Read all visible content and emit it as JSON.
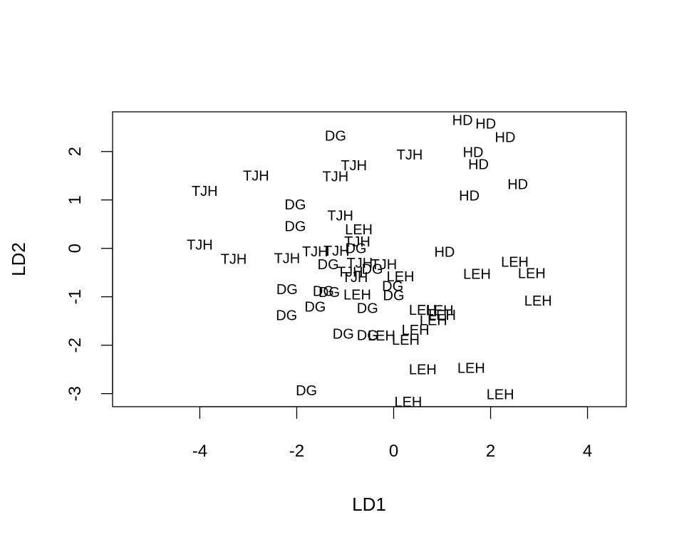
{
  "chart_data": {
    "type": "scatter",
    "title": "",
    "xlabel": "LD1",
    "ylabel": "LD2",
    "xlim": [
      -5.8,
      4.8
    ],
    "ylim": [
      -3.27,
      2.82
    ],
    "xticks": [
      -4,
      -2,
      0,
      2,
      4
    ],
    "yticks": [
      -3,
      -2,
      -1,
      0,
      1,
      2
    ],
    "points": [
      {
        "x": 1.42,
        "y": 2.65,
        "label": "HD"
      },
      {
        "x": 1.9,
        "y": 2.58,
        "label": "HD"
      },
      {
        "x": 2.3,
        "y": 2.3,
        "label": "HD"
      },
      {
        "x": 1.64,
        "y": 1.99,
        "label": "HD"
      },
      {
        "x": 1.75,
        "y": 1.74,
        "label": "HD"
      },
      {
        "x": 2.56,
        "y": 1.33,
        "label": "HD"
      },
      {
        "x": 1.56,
        "y": 1.09,
        "label": "HD"
      },
      {
        "x": 1.05,
        "y": -0.07,
        "label": "HD"
      },
      {
        "x": -1.2,
        "y": 2.33,
        "label": "DG"
      },
      {
        "x": -2.03,
        "y": 0.91,
        "label": "DG"
      },
      {
        "x": -2.03,
        "y": 0.46,
        "label": "DG"
      },
      {
        "x": -0.78,
        "y": 0.0,
        "label": "DG"
      },
      {
        "x": -1.35,
        "y": -0.33,
        "label": "DG"
      },
      {
        "x": -0.44,
        "y": -0.42,
        "label": "DG"
      },
      {
        "x": -0.02,
        "y": -0.78,
        "label": "DG"
      },
      {
        "x": -2.2,
        "y": -0.84,
        "label": "DG"
      },
      {
        "x": -1.45,
        "y": -0.88,
        "label": "DG"
      },
      {
        "x": -1.33,
        "y": -0.9,
        "label": "DG"
      },
      {
        "x": 0.0,
        "y": -0.97,
        "label": "DG"
      },
      {
        "x": -1.62,
        "y": -1.2,
        "label": "DG"
      },
      {
        "x": -0.54,
        "y": -1.23,
        "label": "DG"
      },
      {
        "x": -2.21,
        "y": -1.38,
        "label": "DG"
      },
      {
        "x": -1.04,
        "y": -1.76,
        "label": "DG"
      },
      {
        "x": -0.54,
        "y": -1.79,
        "label": "DG"
      },
      {
        "x": -1.8,
        "y": -2.93,
        "label": "DG"
      },
      {
        "x": -3.9,
        "y": 1.19,
        "label": "TJH"
      },
      {
        "x": -2.84,
        "y": 1.5,
        "label": "TJH"
      },
      {
        "x": -1.2,
        "y": 1.49,
        "label": "TJH"
      },
      {
        "x": -0.82,
        "y": 1.72,
        "label": "TJH"
      },
      {
        "x": 0.33,
        "y": 1.94,
        "label": "TJH"
      },
      {
        "x": -1.1,
        "y": 0.68,
        "label": "TJH"
      },
      {
        "x": -4.0,
        "y": 0.08,
        "label": "TJH"
      },
      {
        "x": -3.3,
        "y": -0.22,
        "label": "TJH"
      },
      {
        "x": -2.2,
        "y": -0.2,
        "label": "TJH"
      },
      {
        "x": -1.62,
        "y": -0.06,
        "label": "TJH"
      },
      {
        "x": -1.18,
        "y": -0.05,
        "label": "TJH"
      },
      {
        "x": -0.75,
        "y": 0.14,
        "label": "TJH"
      },
      {
        "x": -0.7,
        "y": -0.3,
        "label": "TJH"
      },
      {
        "x": -0.2,
        "y": -0.33,
        "label": "TJH"
      },
      {
        "x": -0.9,
        "y": -0.48,
        "label": "TJH"
      },
      {
        "x": -0.8,
        "y": -0.59,
        "label": "TJH"
      },
      {
        "x": -0.72,
        "y": 0.39,
        "label": "LEH"
      },
      {
        "x": 0.14,
        "y": -0.58,
        "label": "LEH"
      },
      {
        "x": 1.72,
        "y": -0.53,
        "label": "LEH"
      },
      {
        "x": 2.5,
        "y": -0.28,
        "label": "LEH"
      },
      {
        "x": 2.85,
        "y": -0.51,
        "label": "LEH"
      },
      {
        "x": 2.98,
        "y": -1.08,
        "label": "LEH"
      },
      {
        "x": -0.75,
        "y": -0.95,
        "label": "LEH"
      },
      {
        "x": 0.6,
        "y": -1.27,
        "label": "LEH"
      },
      {
        "x": 0.95,
        "y": -1.28,
        "label": "LEH"
      },
      {
        "x": 1.0,
        "y": -1.37,
        "label": "LEH"
      },
      {
        "x": 0.82,
        "y": -1.48,
        "label": "LEH"
      },
      {
        "x": 0.45,
        "y": -1.68,
        "label": "LEH"
      },
      {
        "x": -0.25,
        "y": -1.8,
        "label": "LEH"
      },
      {
        "x": 0.25,
        "y": -1.89,
        "label": "LEH"
      },
      {
        "x": 0.6,
        "y": -2.5,
        "label": "LEH"
      },
      {
        "x": 1.6,
        "y": -2.47,
        "label": "LEH"
      },
      {
        "x": 2.2,
        "y": -3.01,
        "label": "LEH"
      },
      {
        "x": 0.3,
        "y": -3.17,
        "label": "LEH"
      }
    ]
  }
}
